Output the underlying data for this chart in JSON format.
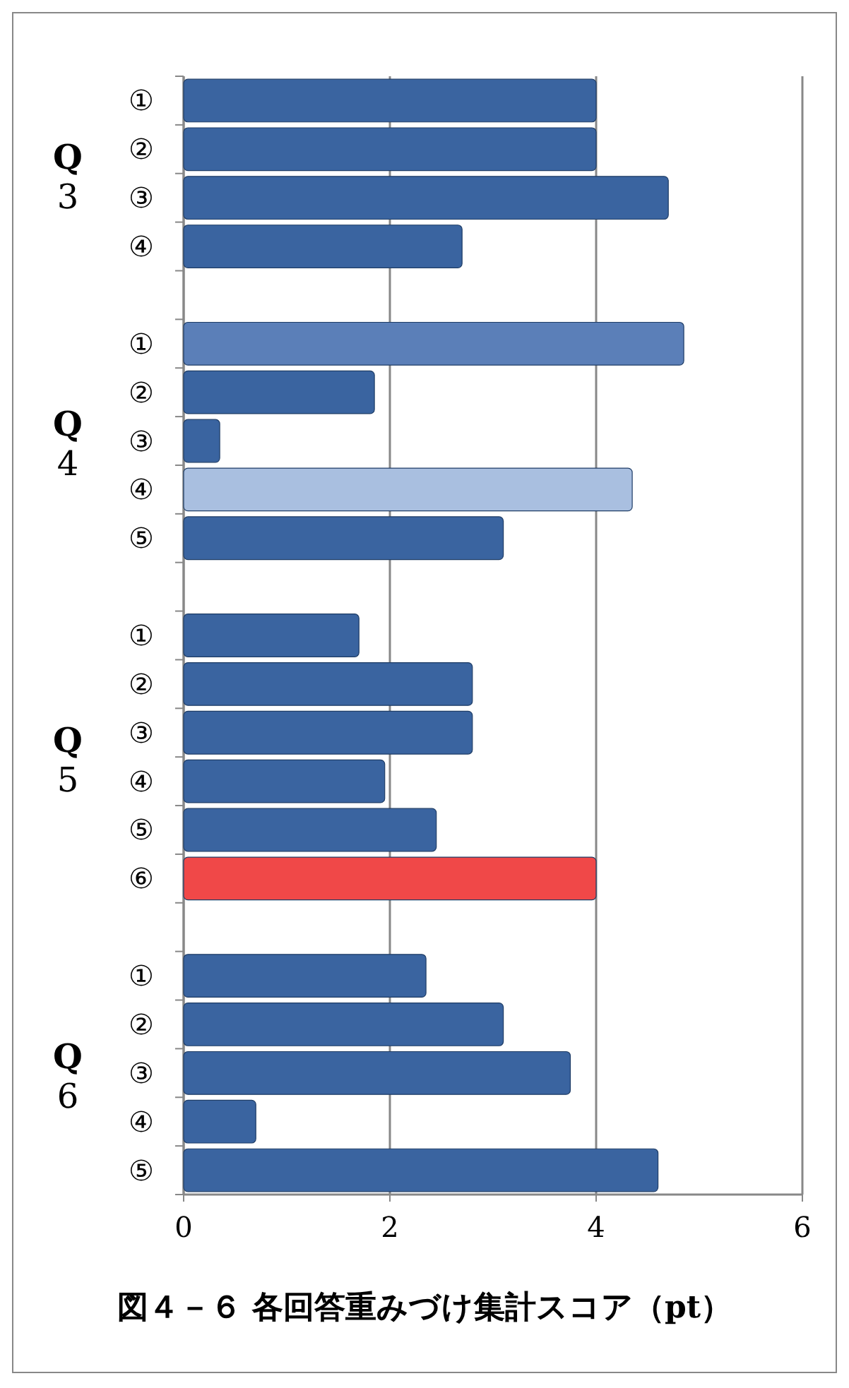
{
  "chart_data": {
    "type": "bar",
    "orientation": "horizontal",
    "title": "図４－６ 各回答重みづけ集計スコア（pt）",
    "categories": [
      "①",
      "②",
      "③",
      "④",
      null,
      "①",
      "②",
      "③",
      "④",
      "⑤",
      null,
      "①",
      "②",
      "③",
      "④",
      "⑤",
      "⑥",
      null,
      "①",
      "②",
      "③",
      "④",
      "⑤"
    ],
    "values": [
      4.0,
      4.0,
      4.7,
      2.7,
      null,
      4.85,
      1.85,
      0.35,
      4.35,
      3.1,
      null,
      1.7,
      2.8,
      2.8,
      1.95,
      2.45,
      4.0,
      null,
      2.35,
      3.1,
      3.75,
      0.7,
      4.6
    ],
    "colors": [
      "#3a64a0",
      "#3a64a0",
      "#3a64a0",
      "#3a64a0",
      null,
      "#5b7fb8",
      "#3a64a0",
      "#3a64a0",
      "#a9bfe0",
      "#3a64a0",
      null,
      "#3a64a0",
      "#3a64a0",
      "#3a64a0",
      "#3a64a0",
      "#3a64a0",
      "#f04848",
      null,
      "#3a64a0",
      "#3a64a0",
      "#3a64a0",
      "#3a64a0",
      "#3a64a0"
    ],
    "annotations": [
      "Q 3",
      "Q 4",
      "Q 5",
      "Q 6"
    ],
    "xlim": [
      0,
      6
    ],
    "xticks": [
      0,
      2,
      4,
      6
    ],
    "grid": "x"
  }
}
